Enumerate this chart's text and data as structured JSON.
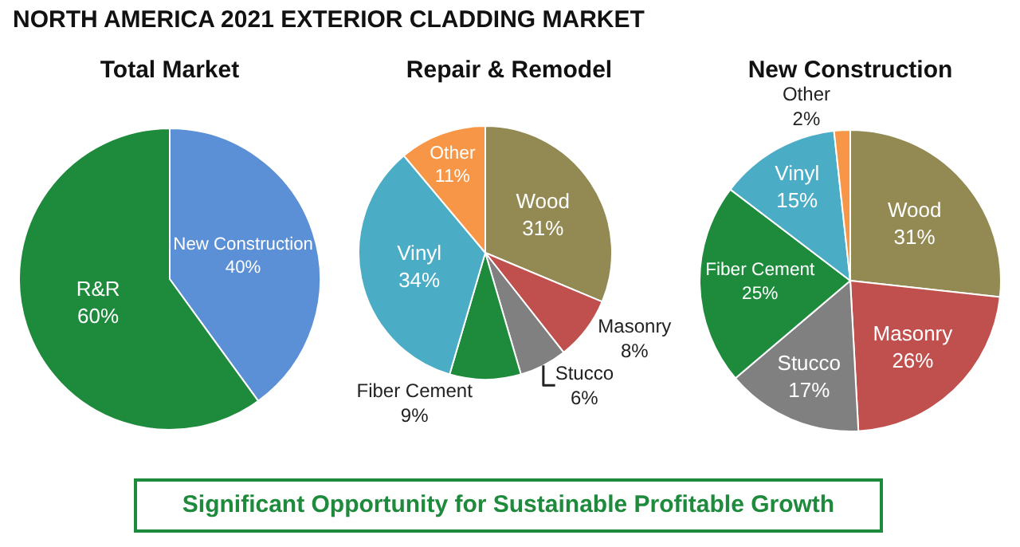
{
  "chart_data": [
    {
      "type": "pie",
      "title": "Total Market",
      "categories": [
        "New Construction",
        "R&R"
      ],
      "values": [
        40,
        60
      ],
      "colors": [
        "#5b8fd6",
        "#1e8a3c"
      ],
      "value_labels": [
        "40%",
        "60%"
      ],
      "annotations": [
        "NORTH AMERICA 2021 EXTERIOR CLADDING MARKET",
        "Significant Opportunity for Sustainable Profitable Growth"
      ]
    },
    {
      "type": "pie",
      "title": "Repair & Remodel",
      "categories": [
        "Wood",
        "Masonry",
        "Stucco",
        "Fiber Cement",
        "Vinyl",
        "Other"
      ],
      "values": [
        31,
        8,
        6,
        9,
        34,
        11
      ],
      "colors": [
        "#938953",
        "#c0504d",
        "#808080",
        "#1e8a3c",
        "#4bacc6",
        "#f79646"
      ],
      "value_labels": [
        "31%",
        "8%",
        "6%",
        "9%",
        "34%",
        "11%"
      ]
    },
    {
      "type": "pie",
      "title": "New Construction",
      "categories": [
        "Wood",
        "Masonry",
        "Stucco",
        "Fiber Cement",
        "Vinyl",
        "Other"
      ],
      "values": [
        31,
        26,
        17,
        25,
        15,
        2
      ],
      "colors": [
        "#938953",
        "#c0504d",
        "#808080",
        "#1e8a3c",
        "#4bacc6",
        "#f79646"
      ],
      "value_labels": [
        "31%",
        "26%",
        "17%",
        "25%",
        "15%",
        "2%"
      ]
    }
  ]
}
